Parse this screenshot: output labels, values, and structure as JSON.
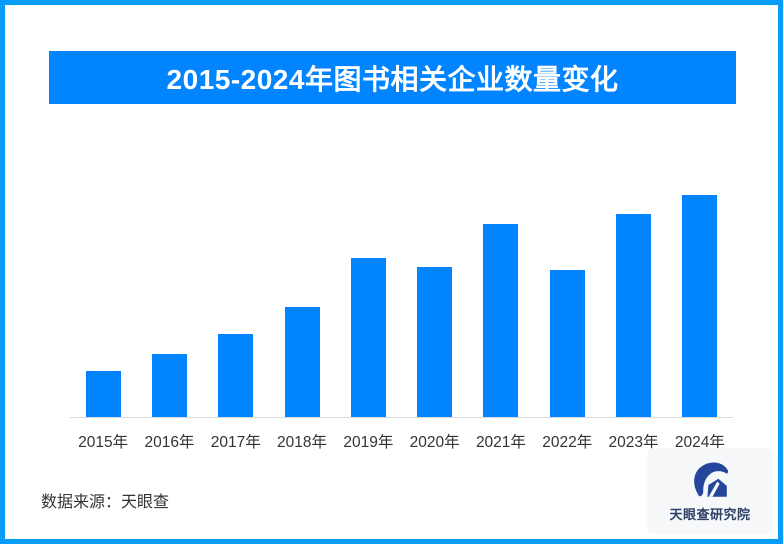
{
  "frame": {
    "border_color": "#089EF8",
    "background": "#FFFFFF"
  },
  "header": {
    "title": "2015-2024年图书相关企业数量变化",
    "background": "#0084FF",
    "text_color": "#FFFFFF"
  },
  "chart_data": {
    "type": "bar",
    "title": "2015-2024年图书相关企业数量变化",
    "categories": [
      "2015年",
      "2016年",
      "2017年",
      "2018年",
      "2019年",
      "2020年",
      "2021年",
      "2022年",
      "2023年",
      "2024年"
    ],
    "values": [
      46,
      63,
      83,
      110,
      159,
      150,
      193,
      147,
      203,
      222
    ],
    "value_note": "no numeric y-axis shown; values are relative bar heights",
    "xlabel": "",
    "ylabel": "",
    "ylim": [
      0,
      240
    ],
    "grid": false,
    "legend": false,
    "bar_color": "#0084FF",
    "axis_line_color": "#D9D9D9",
    "tick_label_color": "#333333"
  },
  "footer": {
    "source_label": "数据来源：天眼查"
  },
  "logo": {
    "name": "天眼查研究院",
    "mark_color": "#24479B",
    "text_color": "#2D4168"
  }
}
